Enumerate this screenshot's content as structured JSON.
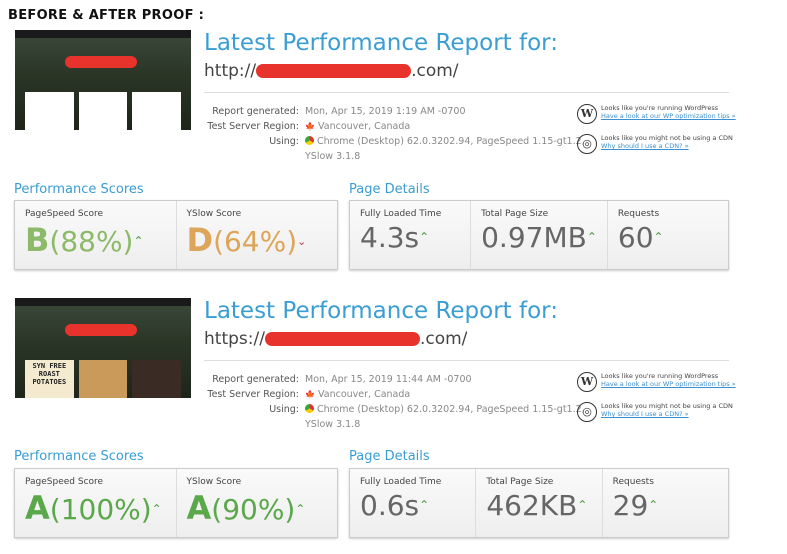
{
  "heading": "BEFORE & AFTER PROOF :",
  "reports": [
    {
      "title": "Latest Performance Report for:",
      "url_prefix": "http://",
      "url_suffix": ".com/",
      "meta": {
        "generated_label": "Report generated:",
        "generated": "Mon, Apr 15, 2019 1:19 AM -0700",
        "region_label": "Test Server Region:",
        "region": "Vancouver, Canada",
        "using_label": "Using:",
        "using": "Chrome (Desktop) 62.0.3202.94, PageSpeed 1.15-gt1.2,",
        "using2": "YSlow 3.1.8"
      },
      "tips": [
        {
          "icon": "wordpress-icon",
          "text": "Looks like you're running WordPress",
          "link": "Have a look at our WP optimization tips »"
        },
        {
          "icon": "globe-icon",
          "text": "Looks like you might not be using a CDN",
          "link": "Why should I use a CDN? »"
        }
      ],
      "scores_heading": "Performance Scores",
      "details_heading": "Page Details",
      "pagespeed": {
        "label": "PageSpeed Score",
        "grade": "B",
        "pct": "(88%)",
        "trend": "up",
        "color": "#8cba68"
      },
      "yslow": {
        "label": "YSlow Score",
        "grade": "D",
        "pct": "(64%)",
        "trend": "down",
        "color": "#dca55a"
      },
      "details": [
        {
          "label": "Fully Loaded Time",
          "value": "4.3s"
        },
        {
          "label": "Total Page Size",
          "value": "0.97MB"
        },
        {
          "label": "Requests",
          "value": "60"
        }
      ]
    },
    {
      "title": "Latest Performance Report for:",
      "url_prefix": "https://",
      "url_suffix": ".com/",
      "meta": {
        "generated_label": "Report generated:",
        "generated": "Mon, Apr 15, 2019 11:44 AM -0700",
        "region_label": "Test Server Region:",
        "region": "Vancouver, Canada",
        "using_label": "Using:",
        "using": "Chrome (Desktop) 62.0.3202.94, PageSpeed 1.15-gt1.2,",
        "using2": "YSlow 3.1.8"
      },
      "tips": [
        {
          "icon": "wordpress-icon",
          "text": "Looks like you're running WordPress",
          "link": "Have a look at our WP optimization tips »"
        },
        {
          "icon": "globe-icon",
          "text": "Looks like you might not be using a CDN",
          "link": "Why should I use a CDN? »"
        }
      ],
      "scores_heading": "Performance Scores",
      "details_heading": "Page Details",
      "pagespeed": {
        "label": "PageSpeed Score",
        "grade": "A",
        "pct": "(100%)",
        "trend": "up",
        "color": "#5aa84a"
      },
      "yslow": {
        "label": "YSlow Score",
        "grade": "A",
        "pct": "(90%)",
        "trend": "up",
        "color": "#5aa84a"
      },
      "details": [
        {
          "label": "Fully Loaded Time",
          "value": "0.6s"
        },
        {
          "label": "Total Page Size",
          "value": "462KB"
        },
        {
          "label": "Requests",
          "value": "29"
        }
      ],
      "thumb_text": "SYN FREE ROAST POTATOES"
    }
  ]
}
